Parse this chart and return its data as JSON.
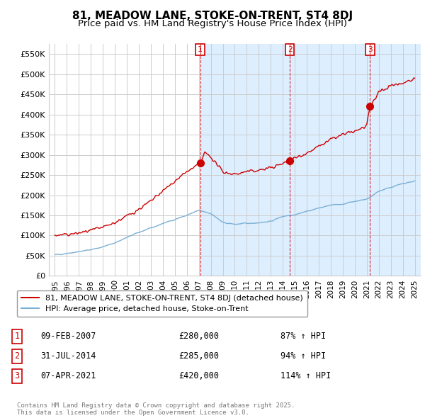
{
  "title": "81, MEADOW LANE, STOKE-ON-TRENT, ST4 8DJ",
  "subtitle": "Price paid vs. HM Land Registry's House Price Index (HPI)",
  "background_color": "#ffffff",
  "plot_bg_color": "#ffffff",
  "grid_color": "#cccccc",
  "sale_color": "#cc0000",
  "hpi_color": "#7aafd4",
  "vline_color": "#cc0000",
  "shade_color": "#ddeeff",
  "sale_points": [
    {
      "date": 2007.11,
      "price": 280000,
      "label": "1"
    },
    {
      "date": 2014.58,
      "price": 285000,
      "label": "2"
    },
    {
      "date": 2021.27,
      "price": 420000,
      "label": "3"
    }
  ],
  "vline_dates": [
    2007.11,
    2014.58,
    2021.27
  ],
  "ylim": [
    0,
    575000
  ],
  "yticks": [
    0,
    50000,
    100000,
    150000,
    200000,
    250000,
    300000,
    350000,
    400000,
    450000,
    500000,
    550000
  ],
  "ytick_labels": [
    "£0",
    "£50K",
    "£100K",
    "£150K",
    "£200K",
    "£250K",
    "£300K",
    "£350K",
    "£400K",
    "£450K",
    "£500K",
    "£550K"
  ],
  "xlim": [
    1994.5,
    2025.5
  ],
  "xticks": [
    1995,
    1996,
    1997,
    1998,
    1999,
    2000,
    2001,
    2002,
    2003,
    2004,
    2005,
    2006,
    2007,
    2008,
    2009,
    2010,
    2011,
    2012,
    2013,
    2014,
    2015,
    2016,
    2017,
    2018,
    2019,
    2020,
    2021,
    2022,
    2023,
    2024,
    2025
  ],
  "legend_sale_label": "81, MEADOW LANE, STOKE-ON-TRENT, ST4 8DJ (detached house)",
  "legend_hpi_label": "HPI: Average price, detached house, Stoke-on-Trent",
  "table_rows": [
    {
      "num": "1",
      "date": "09-FEB-2007",
      "price": "£280,000",
      "pct": "87% ↑ HPI"
    },
    {
      "num": "2",
      "date": "31-JUL-2014",
      "price": "£285,000",
      "pct": "94% ↑ HPI"
    },
    {
      "num": "3",
      "date": "07-APR-2021",
      "price": "£420,000",
      "pct": "114% ↑ HPI"
    }
  ],
  "footer": "Contains HM Land Registry data © Crown copyright and database right 2025.\nThis data is licensed under the Open Government Licence v3.0.",
  "title_fontsize": 11,
  "subtitle_fontsize": 9.5
}
